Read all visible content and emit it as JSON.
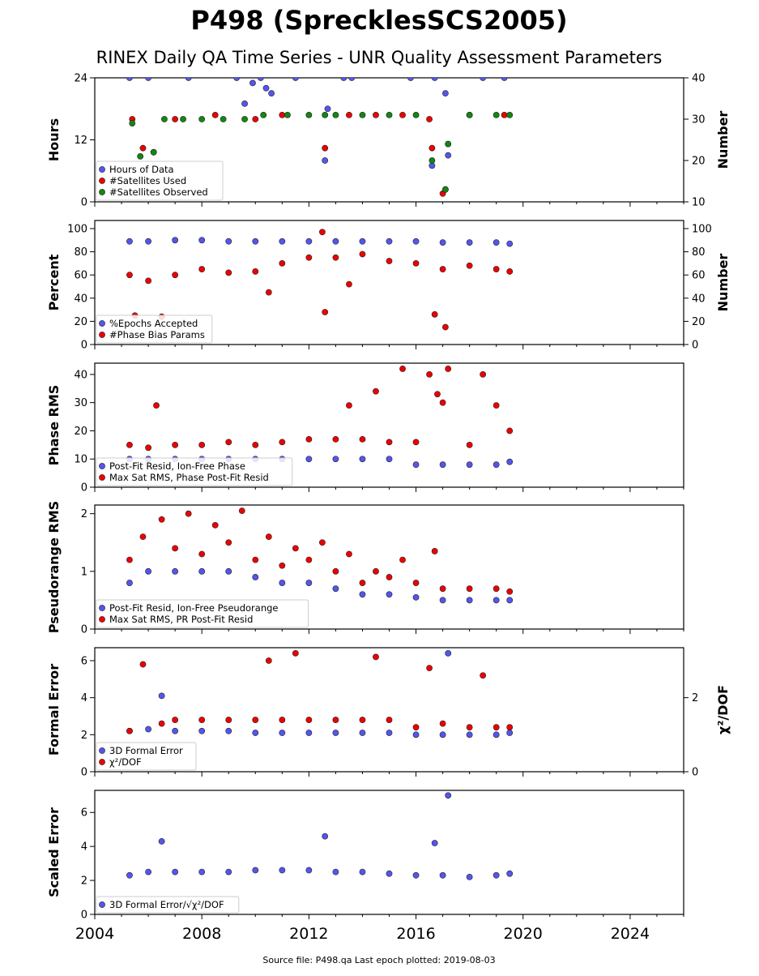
{
  "page": {
    "title": "P498 (SprecklesSCS2005)",
    "subtitle": "RINEX Daily QA Time Series - UNR Quality Assessment Parameters",
    "footer": "Source file: P498.qa Last epoch plotted: 2019-08-03"
  },
  "colors": {
    "blue": "#5555ee",
    "red": "#ee0000",
    "green": "#118811",
    "edge": "#222222"
  },
  "chart_data": [
    {
      "type": "scatter",
      "ylabel": "Hours",
      "y2label": "Number",
      "xlim": [
        2004,
        2026
      ],
      "ylim": [
        0,
        24
      ],
      "y2lim": [
        10,
        40
      ],
      "yticks": [
        0,
        12,
        24
      ],
      "y2ticks": [
        10,
        20,
        30,
        40
      ],
      "xticks": [
        2004,
        2008,
        2012,
        2016,
        2020,
        2024
      ],
      "legend": "lower-left",
      "series": [
        {
          "name": "Hours of Data",
          "color": "blue",
          "axis": "left",
          "x": [
            2005.3,
            2006.0,
            2007.5,
            2009.3,
            2009.6,
            2009.9,
            2010.2,
            2010.4,
            2010.6,
            2011.5,
            2012.6,
            2012.7,
            2013.3,
            2013.6,
            2015.8,
            2016.6,
            2016.7,
            2017.1,
            2017.2,
            2018.5,
            2019.3
          ],
          "y": [
            24,
            24,
            24,
            24,
            19,
            23,
            24,
            22,
            21,
            24,
            8,
            18,
            24,
            24,
            24,
            7,
            24,
            21,
            9,
            24,
            24
          ]
        },
        {
          "name": "#Satellites Used",
          "color": "red",
          "axis": "right",
          "x": [
            2005.4,
            2005.8,
            2006.2,
            2007.0,
            2008.5,
            2010.0,
            2011.0,
            2012.6,
            2013.5,
            2014.5,
            2015.5,
            2016.5,
            2016.6,
            2017.0,
            2017.1,
            2017.2,
            2018.0,
            2019.3
          ],
          "y": [
            30,
            23,
            22,
            30,
            31,
            30,
            31,
            23,
            31,
            31,
            31,
            30,
            23,
            12,
            13,
            24,
            31,
            31
          ]
        },
        {
          "name": "#Satellites Observed",
          "color": "green",
          "axis": "right",
          "x": [
            2005.4,
            2005.7,
            2006.2,
            2006.6,
            2007.3,
            2008.0,
            2008.8,
            2009.6,
            2010.3,
            2011.2,
            2012.0,
            2012.6,
            2013.0,
            2014.0,
            2015.0,
            2016.0,
            2016.6,
            2017.1,
            2017.2,
            2018.0,
            2019.0,
            2019.5
          ],
          "y": [
            29,
            21,
            22,
            30,
            30,
            30,
            30,
            30,
            31,
            31,
            31,
            31,
            31,
            31,
            31,
            31,
            20,
            13,
            24,
            31,
            31,
            31
          ]
        }
      ]
    },
    {
      "type": "scatter",
      "ylabel": "Percent",
      "y2label": "Number",
      "xlim": [
        2004,
        2026
      ],
      "ylim": [
        0,
        107
      ],
      "y2lim": [
        0,
        107
      ],
      "yticks": [
        0,
        20,
        40,
        60,
        80,
        100
      ],
      "y2ticks": [
        0,
        20,
        40,
        60,
        80,
        100
      ],
      "xticks": [
        2004,
        2008,
        2012,
        2016,
        2020,
        2024
      ],
      "legend": "lower-left",
      "series": [
        {
          "name": "%Epochs Accepted",
          "color": "blue",
          "axis": "left",
          "x": [
            2005.3,
            2006.0,
            2007.0,
            2008.0,
            2009.0,
            2010.0,
            2011.0,
            2012.0,
            2013.0,
            2014.0,
            2015.0,
            2016.0,
            2017.0,
            2018.0,
            2019.0,
            2019.5
          ],
          "y": [
            89,
            89,
            90,
            90,
            89,
            89,
            89,
            89,
            89,
            89,
            89,
            89,
            88,
            88,
            88,
            87
          ]
        },
        {
          "name": "#Phase Bias Params",
          "color": "red",
          "axis": "right",
          "x": [
            2005.3,
            2005.5,
            2006.0,
            2006.5,
            2007.0,
            2008.0,
            2009.0,
            2010.0,
            2010.5,
            2011.0,
            2012.0,
            2012.5,
            2012.6,
            2013.0,
            2013.5,
            2014.0,
            2015.0,
            2016.0,
            2016.7,
            2017.0,
            2017.1,
            2018.0,
            2019.0,
            2019.5
          ],
          "y": [
            60,
            25,
            55,
            24,
            60,
            65,
            62,
            63,
            45,
            70,
            75,
            97,
            28,
            75,
            52,
            78,
            72,
            70,
            26,
            65,
            15,
            68,
            65,
            63
          ]
        }
      ]
    },
    {
      "type": "scatter",
      "ylabel": "Phase RMS",
      "xlim": [
        2004,
        2026
      ],
      "ylim": [
        0,
        44
      ],
      "yticks": [
        0,
        10,
        20,
        30,
        40
      ],
      "xticks": [
        2004,
        2008,
        2012,
        2016,
        2020,
        2024
      ],
      "legend": "lower-left",
      "series": [
        {
          "name": "Post-Fit Resid, Ion-Free Phase",
          "color": "blue",
          "axis": "left",
          "x": [
            2005.3,
            2006.0,
            2007.0,
            2008.0,
            2009.0,
            2010.0,
            2011.0,
            2012.0,
            2013.0,
            2014.0,
            2015.0,
            2016.0,
            2017.0,
            2018.0,
            2019.0,
            2019.5
          ],
          "y": [
            10,
            10,
            10,
            10,
            10,
            10,
            10,
            10,
            10,
            10,
            10,
            8,
            8,
            8,
            8,
            9
          ]
        },
        {
          "name": "Max Sat RMS, Phase Post-Fit Resid",
          "color": "red",
          "axis": "left",
          "x": [
            2005.3,
            2006.0,
            2006.3,
            2007.0,
            2008.0,
            2009.0,
            2010.0,
            2011.0,
            2012.0,
            2013.0,
            2013.5,
            2014.0,
            2014.5,
            2015.0,
            2015.5,
            2016.0,
            2016.5,
            2016.8,
            2017.0,
            2017.2,
            2018.0,
            2018.5,
            2019.0,
            2019.5
          ],
          "y": [
            15,
            14,
            29,
            15,
            15,
            16,
            15,
            16,
            17,
            17,
            29,
            17,
            34,
            16,
            42,
            16,
            40,
            33,
            30,
            42,
            15,
            40,
            29,
            20
          ]
        }
      ]
    },
    {
      "type": "scatter",
      "ylabel": "Pseudorange RMS",
      "xlim": [
        2004,
        2026
      ],
      "ylim": [
        0,
        2.15
      ],
      "yticks": [
        0,
        1,
        2
      ],
      "xticks": [
        2004,
        2008,
        2012,
        2016,
        2020,
        2024
      ],
      "legend": "lower-left",
      "series": [
        {
          "name": "Post-Fit Resid, Ion-Free Pseudorange",
          "color": "blue",
          "axis": "left",
          "x": [
            2005.3,
            2006.0,
            2007.0,
            2008.0,
            2009.0,
            2010.0,
            2011.0,
            2012.0,
            2013.0,
            2014.0,
            2015.0,
            2016.0,
            2017.0,
            2018.0,
            2019.0,
            2019.5
          ],
          "y": [
            0.8,
            1.0,
            1.0,
            1.0,
            1.0,
            0.9,
            0.8,
            0.8,
            0.7,
            0.6,
            0.6,
            0.55,
            0.5,
            0.5,
            0.5,
            0.5
          ]
        },
        {
          "name": "Max Sat RMS, PR Post-Fit Resid",
          "color": "red",
          "axis": "left",
          "x": [
            2005.3,
            2005.8,
            2006.5,
            2007.0,
            2007.5,
            2008.0,
            2008.5,
            2009.0,
            2009.5,
            2010.0,
            2010.5,
            2011.0,
            2011.5,
            2012.0,
            2012.5,
            2013.0,
            2013.5,
            2014.0,
            2014.5,
            2015.0,
            2015.5,
            2016.0,
            2016.7,
            2017.0,
            2018.0,
            2019.0,
            2019.5
          ],
          "y": [
            1.2,
            1.6,
            1.9,
            1.4,
            2.0,
            1.3,
            1.8,
            1.5,
            2.05,
            1.2,
            1.6,
            1.1,
            1.4,
            1.2,
            1.5,
            1.0,
            1.3,
            0.8,
            1.0,
            0.9,
            1.2,
            0.8,
            1.35,
            0.7,
            0.7,
            0.7,
            0.65
          ]
        }
      ]
    },
    {
      "type": "scatter",
      "ylabel": "Formal Error",
      "y2label": "χ²/DOF",
      "xlim": [
        2004,
        2026
      ],
      "ylim": [
        0,
        6.7
      ],
      "y2lim": [
        0,
        3.35
      ],
      "yticks": [
        0,
        2,
        4,
        6
      ],
      "y2ticks": [
        0,
        2
      ],
      "xticks": [
        2004,
        2008,
        2012,
        2016,
        2020,
        2024
      ],
      "legend": "lower-left",
      "series": [
        {
          "name": "3D Formal Error",
          "color": "blue",
          "axis": "left",
          "x": [
            2005.3,
            2006.0,
            2006.5,
            2007.0,
            2008.0,
            2009.0,
            2010.0,
            2011.0,
            2012.0,
            2013.0,
            2014.0,
            2015.0,
            2016.0,
            2017.0,
            2017.2,
            2018.0,
            2019.0,
            2019.5
          ],
          "y": [
            2.2,
            2.3,
            4.1,
            2.2,
            2.2,
            2.2,
            2.1,
            2.1,
            2.1,
            2.1,
            2.1,
            2.1,
            2.0,
            2.0,
            6.4,
            2.0,
            2.0,
            2.1
          ]
        },
        {
          "name": "χ²/DOF",
          "color": "red",
          "axis": "right",
          "x": [
            2005.3,
            2005.8,
            2006.5,
            2007.0,
            2008.0,
            2009.0,
            2010.0,
            2010.5,
            2011.0,
            2011.5,
            2012.0,
            2013.0,
            2014.0,
            2014.5,
            2015.0,
            2016.0,
            2016.5,
            2017.0,
            2018.0,
            2018.5,
            2019.0,
            2019.5
          ],
          "y": [
            1.1,
            2.9,
            1.3,
            1.4,
            1.4,
            1.4,
            1.4,
            3.0,
            1.4,
            3.2,
            1.4,
            1.4,
            1.4,
            3.1,
            1.4,
            1.2,
            2.8,
            1.3,
            1.2,
            2.6,
            1.2,
            1.2
          ]
        }
      ]
    },
    {
      "type": "scatter",
      "ylabel": "Scaled Error",
      "xlim": [
        2004,
        2026
      ],
      "ylim": [
        0,
        7.3
      ],
      "yticks": [
        0,
        2,
        4,
        6
      ],
      "xticks": [
        2004,
        2008,
        2012,
        2016,
        2020,
        2024
      ],
      "xticklabels": [
        "2004",
        "2008",
        "2012",
        "2016",
        "2020",
        "2024"
      ],
      "legend": "lower-left",
      "series": [
        {
          "name": "3D Formal Error/√χ²/DOF",
          "color": "blue",
          "axis": "left",
          "x": [
            2005.3,
            2006.0,
            2006.5,
            2007.0,
            2008.0,
            2009.0,
            2010.0,
            2011.0,
            2012.0,
            2012.6,
            2013.0,
            2014.0,
            2015.0,
            2016.0,
            2016.7,
            2017.0,
            2017.2,
            2018.0,
            2019.0,
            2019.5
          ],
          "y": [
            2.3,
            2.5,
            4.3,
            2.5,
            2.5,
            2.5,
            2.6,
            2.6,
            2.6,
            4.6,
            2.5,
            2.5,
            2.4,
            2.3,
            4.2,
            2.3,
            7.0,
            2.2,
            2.3,
            2.4
          ]
        }
      ]
    }
  ]
}
